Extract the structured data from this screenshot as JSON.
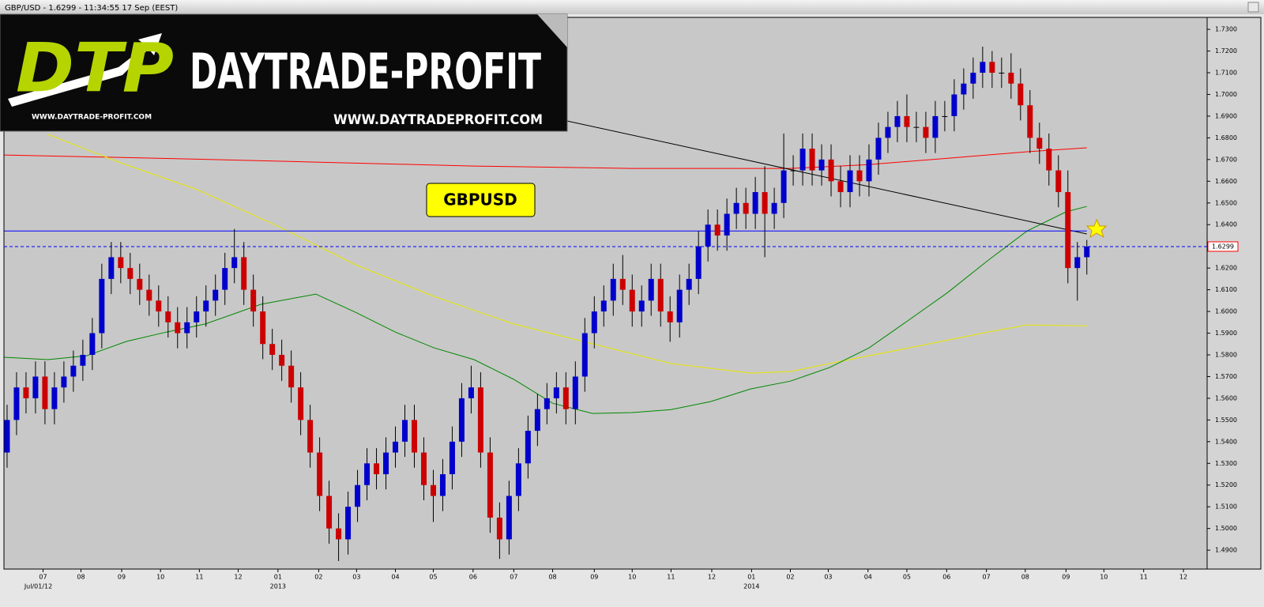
{
  "window_title": "GBP/USD - 1.6299 - 11:34:55 17 Sep (EEST)",
  "logo": {
    "mark": "DTP",
    "name": "DAYTRADE-PROFIT",
    "url_small": "WWW.DAYTRADE-PROFIT.COM",
    "url": "WWW.DAYTRADEPROFIT.COM"
  },
  "chart_data": {
    "type": "candlestick",
    "annotation": "GBPUSD",
    "up_color": "#0000cc",
    "down_color": "#cc0000",
    "wick_color": "#000000",
    "xlim": [
      -0.33,
      126.7
    ],
    "ylim": [
      1.4813,
      1.7355
    ],
    "last_price": 1.6299,
    "last_price_color": "#0000ff",
    "xticks": [
      {
        "value": 3.8,
        "label": "07"
      },
      {
        "value": 7.8,
        "label": "08"
      },
      {
        "value": 12.1,
        "label": "09"
      },
      {
        "value": 16.2,
        "label": "10"
      },
      {
        "value": 20.3,
        "label": "11"
      },
      {
        "value": 24.4,
        "label": "12"
      },
      {
        "value": 28.6,
        "label": "01"
      },
      {
        "value": 32.9,
        "label": "02"
      },
      {
        "value": 36.9,
        "label": "03"
      },
      {
        "value": 41.0,
        "label": "04"
      },
      {
        "value": 45.0,
        "label": "05"
      },
      {
        "value": 49.2,
        "label": "06"
      },
      {
        "value": 53.5,
        "label": "07"
      },
      {
        "value": 57.6,
        "label": "08"
      },
      {
        "value": 62.0,
        "label": "09"
      },
      {
        "value": 66.0,
        "label": "10"
      },
      {
        "value": 70.1,
        "label": "11"
      },
      {
        "value": 74.4,
        "label": "12"
      },
      {
        "value": 78.6,
        "label": "01"
      },
      {
        "value": 82.7,
        "label": "02"
      },
      {
        "value": 86.7,
        "label": "03"
      },
      {
        "value": 90.9,
        "label": "04"
      },
      {
        "value": 95.0,
        "label": "05"
      },
      {
        "value": 99.2,
        "label": "06"
      },
      {
        "value": 103.4,
        "label": "07"
      },
      {
        "value": 107.5,
        "label": "08"
      },
      {
        "value": 111.8,
        "label": "09"
      },
      {
        "value": 115.8,
        "label": "10"
      },
      {
        "value": 120.0,
        "label": "11"
      },
      {
        "value": 124.2,
        "label": "12"
      }
    ],
    "x_sublabels": [
      {
        "value": 3.3,
        "label": "Jul/01/12"
      },
      {
        "value": 28.6,
        "label": "2013"
      },
      {
        "value": 78.6,
        "label": "2014"
      }
    ],
    "yticks": [
      {
        "value": 1.49,
        "label": "1.4900"
      },
      {
        "value": 1.5,
        "label": "1.5000"
      },
      {
        "value": 1.51,
        "label": "1.5100"
      },
      {
        "value": 1.52,
        "label": "1.5200"
      },
      {
        "value": 1.53,
        "label": "1.5300"
      },
      {
        "value": 1.54,
        "label": "1.5400"
      },
      {
        "value": 1.55,
        "label": "1.5500"
      },
      {
        "value": 1.56,
        "label": "1.5600"
      },
      {
        "value": 1.57,
        "label": "1.5700"
      },
      {
        "value": 1.58,
        "label": "1.5800"
      },
      {
        "value": 1.59,
        "label": "1.5900"
      },
      {
        "value": 1.6,
        "label": "1.6000"
      },
      {
        "value": 1.61,
        "label": "1.6100"
      },
      {
        "value": 1.62,
        "label": "1.6200"
      },
      {
        "value": 1.63,
        "label": "1.6300"
      },
      {
        "value": 1.64,
        "label": "1.6400"
      },
      {
        "value": 1.65,
        "label": "1.6500"
      },
      {
        "value": 1.66,
        "label": "1.6600"
      },
      {
        "value": 1.67,
        "label": "1.6700"
      },
      {
        "value": 1.68,
        "label": "1.6800"
      },
      {
        "value": 1.69,
        "label": "1.6900"
      },
      {
        "value": 1.7,
        "label": "1.7000"
      },
      {
        "value": 1.71,
        "label": "1.7100"
      },
      {
        "value": 1.72,
        "label": "1.7200"
      },
      {
        "value": 1.73,
        "label": "1.7300"
      }
    ],
    "lines": [
      {
        "color": "#ff0000",
        "x": [
          -0.3,
          15.9,
          32.6,
          49.3,
          66.0,
          82.7,
          91.0,
          99.3,
          107.7,
          114.0
        ],
        "values": [
          1.6721,
          1.6706,
          1.6688,
          1.667,
          1.6659,
          1.6659,
          1.6677,
          1.6706,
          1.6736,
          1.6754
        ]
      },
      {
        "color": "#e8e800",
        "x": [
          4.3,
          11.8,
          20.1,
          28.4,
          36.8,
          45.1,
          53.5,
          61.8,
          70.1,
          78.5,
          82.7,
          86.8,
          95.2,
          103.5,
          107.7,
          114.0
        ],
        "values": [
          1.6816,
          1.6688,
          1.6561,
          1.6397,
          1.6215,
          1.6069,
          1.5942,
          1.5851,
          1.576,
          1.5716,
          1.5723,
          1.576,
          1.5832,
          1.5905,
          1.5938,
          1.5934
        ]
      },
      {
        "color": "#008800",
        "x": [
          -0.3,
          4.3,
          8.4,
          12.6,
          16.8,
          20.9,
          26.8,
          32.6,
          36.8,
          41.0,
          45.1,
          49.3,
          53.5,
          57.6,
          61.8,
          66.0,
          70.1,
          74.3,
          78.5,
          82.7,
          86.8,
          91.0,
          95.2,
          99.3,
          103.5,
          107.7,
          111.8,
          114.0
        ],
        "values": [
          1.5789,
          1.5778,
          1.5796,
          1.5862,
          1.5905,
          1.5942,
          1.6033,
          1.608,
          1.5996,
          1.5905,
          1.5832,
          1.5778,
          1.5687,
          1.5577,
          1.553,
          1.5534,
          1.5548,
          1.5585,
          1.5643,
          1.5679,
          1.5741,
          1.5832,
          1.596,
          1.6087,
          1.6233,
          1.6371,
          1.6459,
          1.6484
        ]
      },
      {
        "color": "#000000",
        "x": [
          59.1,
          114.0
        ],
        "values": [
          1.6878,
          1.6357
        ]
      },
      {
        "color": "#0000ff",
        "x": [
          -0.3,
          114.0
        ],
        "values": [
          1.6371,
          1.6371
        ]
      }
    ],
    "candles": [
      [
        1.535,
        1.557,
        1.528,
        1.55
      ],
      [
        1.55,
        1.572,
        1.543,
        1.565
      ],
      [
        1.565,
        1.572,
        1.553,
        1.56
      ],
      [
        1.56,
        1.577,
        1.553,
        1.57
      ],
      [
        1.57,
        1.577,
        1.548,
        1.555
      ],
      [
        1.555,
        1.572,
        1.548,
        1.565
      ],
      [
        1.565,
        1.577,
        1.558,
        1.57
      ],
      [
        1.57,
        1.582,
        1.563,
        1.575
      ],
      [
        1.575,
        1.587,
        1.568,
        1.58
      ],
      [
        1.58,
        1.597,
        1.573,
        1.59
      ],
      [
        1.59,
        1.622,
        1.583,
        1.615
      ],
      [
        1.615,
        1.632,
        1.608,
        1.625
      ],
      [
        1.625,
        1.632,
        1.613,
        1.62
      ],
      [
        1.62,
        1.627,
        1.608,
        1.615
      ],
      [
        1.615,
        1.622,
        1.603,
        1.61
      ],
      [
        1.61,
        1.617,
        1.598,
        1.605
      ],
      [
        1.605,
        1.612,
        1.593,
        1.6
      ],
      [
        1.6,
        1.607,
        1.588,
        1.595
      ],
      [
        1.595,
        1.602,
        1.583,
        1.59
      ],
      [
        1.59,
        1.602,
        1.583,
        1.595
      ],
      [
        1.595,
        1.607,
        1.588,
        1.6
      ],
      [
        1.6,
        1.612,
        1.593,
        1.605
      ],
      [
        1.605,
        1.617,
        1.598,
        1.61
      ],
      [
        1.61,
        1.627,
        1.603,
        1.62
      ],
      [
        1.62,
        1.638,
        1.613,
        1.625
      ],
      [
        1.625,
        1.632,
        1.603,
        1.61
      ],
      [
        1.61,
        1.617,
        1.593,
        1.6
      ],
      [
        1.6,
        1.607,
        1.578,
        1.585
      ],
      [
        1.585,
        1.592,
        1.573,
        1.58
      ],
      [
        1.58,
        1.587,
        1.568,
        1.575
      ],
      [
        1.575,
        1.582,
        1.558,
        1.565
      ],
      [
        1.565,
        1.572,
        1.543,
        1.55
      ],
      [
        1.55,
        1.557,
        1.528,
        1.535
      ],
      [
        1.535,
        1.542,
        1.508,
        1.515
      ],
      [
        1.515,
        1.522,
        1.493,
        1.5
      ],
      [
        1.5,
        1.507,
        1.485,
        1.495
      ],
      [
        1.495,
        1.517,
        1.488,
        1.51
      ],
      [
        1.51,
        1.527,
        1.503,
        1.52
      ],
      [
        1.52,
        1.537,
        1.513,
        1.53
      ],
      [
        1.53,
        1.537,
        1.518,
        1.525
      ],
      [
        1.525,
        1.542,
        1.518,
        1.535
      ],
      [
        1.535,
        1.547,
        1.528,
        1.54
      ],
      [
        1.54,
        1.557,
        1.533,
        1.55
      ],
      [
        1.55,
        1.557,
        1.528,
        1.535
      ],
      [
        1.535,
        1.542,
        1.513,
        1.52
      ],
      [
        1.52,
        1.527,
        1.503,
        1.515
      ],
      [
        1.515,
        1.532,
        1.508,
        1.525
      ],
      [
        1.525,
        1.547,
        1.518,
        1.54
      ],
      [
        1.54,
        1.567,
        1.533,
        1.56
      ],
      [
        1.56,
        1.575,
        1.553,
        1.565
      ],
      [
        1.565,
        1.572,
        1.528,
        1.535
      ],
      [
        1.535,
        1.542,
        1.498,
        1.505
      ],
      [
        1.505,
        1.512,
        1.486,
        1.495
      ],
      [
        1.495,
        1.522,
        1.488,
        1.515
      ],
      [
        1.515,
        1.537,
        1.508,
        1.53
      ],
      [
        1.53,
        1.552,
        1.523,
        1.545
      ],
      [
        1.545,
        1.562,
        1.538,
        1.555
      ],
      [
        1.555,
        1.567,
        1.548,
        1.56
      ],
      [
        1.56,
        1.572,
        1.553,
        1.565
      ],
      [
        1.565,
        1.572,
        1.548,
        1.555
      ],
      [
        1.555,
        1.577,
        1.548,
        1.57
      ],
      [
        1.57,
        1.597,
        1.563,
        1.59
      ],
      [
        1.59,
        1.607,
        1.583,
        1.6
      ],
      [
        1.6,
        1.612,
        1.593,
        1.605
      ],
      [
        1.605,
        1.622,
        1.598,
        1.615
      ],
      [
        1.615,
        1.626,
        1.603,
        1.61
      ],
      [
        1.61,
        1.617,
        1.593,
        1.6
      ],
      [
        1.6,
        1.612,
        1.593,
        1.605
      ],
      [
        1.605,
        1.622,
        1.598,
        1.615
      ],
      [
        1.615,
        1.622,
        1.593,
        1.6
      ],
      [
        1.6,
        1.607,
        1.586,
        1.595
      ],
      [
        1.595,
        1.617,
        1.588,
        1.61
      ],
      [
        1.61,
        1.622,
        1.603,
        1.615
      ],
      [
        1.615,
        1.637,
        1.608,
        1.63
      ],
      [
        1.63,
        1.647,
        1.623,
        1.64
      ],
      [
        1.64,
        1.647,
        1.628,
        1.635
      ],
      [
        1.635,
        1.652,
        1.628,
        1.645
      ],
      [
        1.645,
        1.657,
        1.638,
        1.65
      ],
      [
        1.65,
        1.657,
        1.638,
        1.645
      ],
      [
        1.645,
        1.662,
        1.638,
        1.655
      ],
      [
        1.655,
        1.667,
        1.625,
        1.645
      ],
      [
        1.645,
        1.657,
        1.638,
        1.65
      ],
      [
        1.65,
        1.682,
        1.643,
        1.665
      ],
      [
        1.665,
        1.672,
        1.658,
        1.665
      ],
      [
        1.665,
        1.682,
        1.658,
        1.675
      ],
      [
        1.675,
        1.682,
        1.658,
        1.665
      ],
      [
        1.665,
        1.677,
        1.658,
        1.67
      ],
      [
        1.67,
        1.677,
        1.653,
        1.66
      ],
      [
        1.66,
        1.667,
        1.648,
        1.655
      ],
      [
        1.655,
        1.672,
        1.648,
        1.665
      ],
      [
        1.665,
        1.672,
        1.653,
        1.66
      ],
      [
        1.66,
        1.677,
        1.653,
        1.67
      ],
      [
        1.67,
        1.687,
        1.663,
        1.68
      ],
      [
        1.68,
        1.692,
        1.673,
        1.685
      ],
      [
        1.685,
        1.697,
        1.678,
        1.69
      ],
      [
        1.69,
        1.7,
        1.678,
        1.685
      ],
      [
        1.685,
        1.692,
        1.678,
        1.685
      ],
      [
        1.685,
        1.692,
        1.673,
        1.68
      ],
      [
        1.68,
        1.697,
        1.673,
        1.69
      ],
      [
        1.69,
        1.697,
        1.683,
        1.69
      ],
      [
        1.69,
        1.707,
        1.683,
        1.7
      ],
      [
        1.7,
        1.712,
        1.693,
        1.705
      ],
      [
        1.705,
        1.717,
        1.698,
        1.71
      ],
      [
        1.71,
        1.722,
        1.703,
        1.715
      ],
      [
        1.715,
        1.72,
        1.703,
        1.71
      ],
      [
        1.71,
        1.717,
        1.703,
        1.71
      ],
      [
        1.71,
        1.719,
        1.698,
        1.705
      ],
      [
        1.705,
        1.712,
        1.688,
        1.695
      ],
      [
        1.695,
        1.702,
        1.673,
        1.68
      ],
      [
        1.68,
        1.687,
        1.668,
        1.675
      ],
      [
        1.675,
        1.682,
        1.658,
        1.665
      ],
      [
        1.665,
        1.672,
        1.648,
        1.655
      ],
      [
        1.655,
        1.665,
        1.613,
        1.62
      ],
      [
        1.62,
        1.632,
        1.605,
        1.625
      ],
      [
        1.625,
        1.633,
        1.617,
        1.6299
      ]
    ]
  }
}
